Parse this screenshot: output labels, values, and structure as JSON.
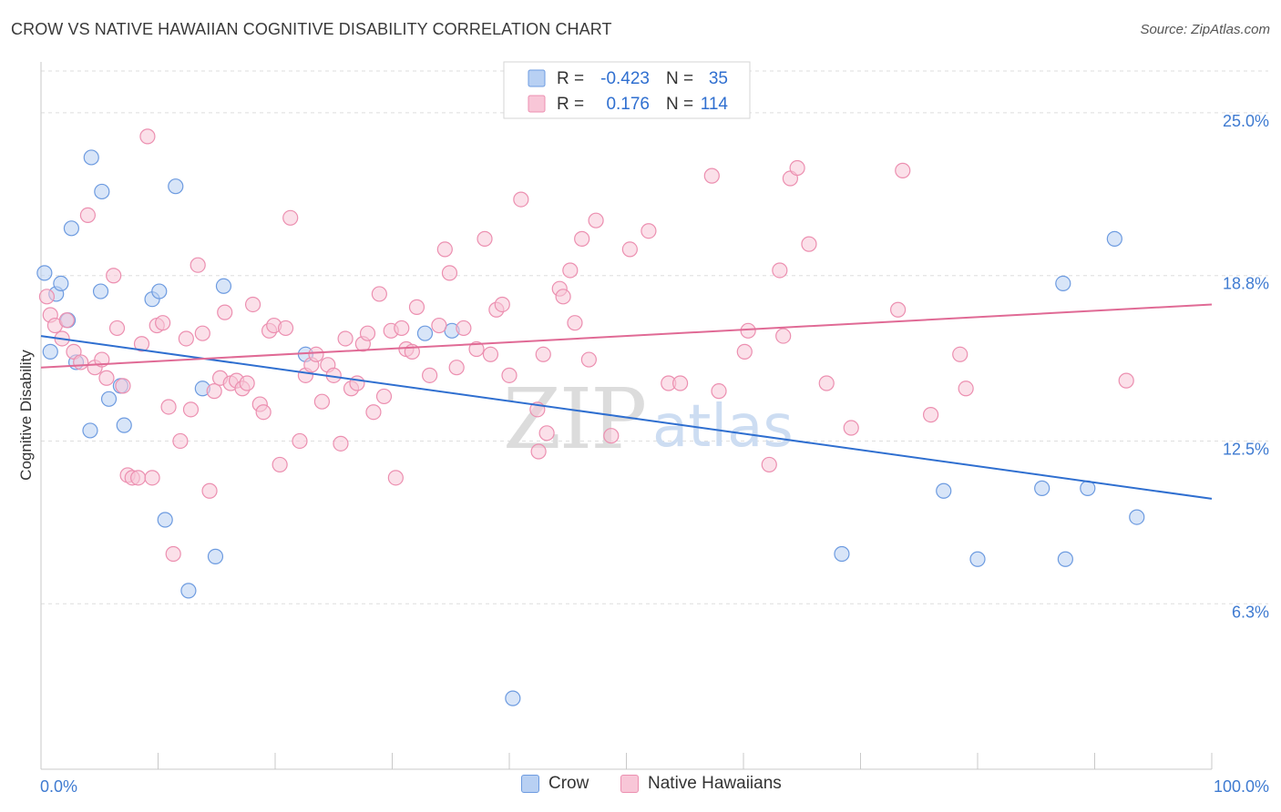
{
  "title": "CROW VS NATIVE HAWAIIAN COGNITIVE DISABILITY CORRELATION CHART",
  "source": "Source: ZipAtlas.com",
  "watermark": {
    "zip": "ZIP",
    "atlas": "atlas"
  },
  "chart_data": {
    "type": "scatter",
    "xlabel": "",
    "ylabel": "Cognitive Disability",
    "xlim": [
      0,
      100
    ],
    "ylim": [
      0,
      26.8
    ],
    "x_tick_labels": [
      "0.0%",
      "100.0%"
    ],
    "y_ticks": [
      {
        "value": 6.3,
        "label": "6.3%"
      },
      {
        "value": 12.5,
        "label": "12.5%"
      },
      {
        "value": 18.8,
        "label": "18.8%"
      },
      {
        "value": 25.0,
        "label": "25.0%"
      }
    ],
    "grid": true,
    "legend": {
      "position": "top-center",
      "rows": [
        {
          "r_label": "R =",
          "r_value": "-0.423",
          "n_label": "N =",
          "n_value": "35"
        },
        {
          "r_label": "R =",
          "r_value": "0.176",
          "n_label": "N =",
          "n_value": "114"
        }
      ]
    },
    "series": [
      {
        "name": "Crow",
        "color": "#6d9be0",
        "fill": "#b8d0f3",
        "line_color": "#2f6fd0",
        "trend": {
          "x": [
            0,
            100
          ],
          "y": [
            16.5,
            10.3
          ]
        },
        "points": [
          [
            0.3,
            18.9
          ],
          [
            1.3,
            18.1
          ],
          [
            1.7,
            18.5
          ],
          [
            2.3,
            17.1
          ],
          [
            0.8,
            15.9
          ],
          [
            3.0,
            15.5
          ],
          [
            2.6,
            20.6
          ],
          [
            4.2,
            12.9
          ],
          [
            4.3,
            23.3
          ],
          [
            5.2,
            22.0
          ],
          [
            5.1,
            18.2
          ],
          [
            5.8,
            14.1
          ],
          [
            6.8,
            14.6
          ],
          [
            7.1,
            13.1
          ],
          [
            9.5,
            17.9
          ],
          [
            10.1,
            18.2
          ],
          [
            10.6,
            9.5
          ],
          [
            11.5,
            22.2
          ],
          [
            12.6,
            6.8
          ],
          [
            13.8,
            14.5
          ],
          [
            14.9,
            8.1
          ],
          [
            15.6,
            18.4
          ],
          [
            22.6,
            15.8
          ],
          [
            32.8,
            16.6
          ],
          [
            35.1,
            16.7
          ],
          [
            40.3,
            2.7
          ],
          [
            68.4,
            8.2
          ],
          [
            77.1,
            10.6
          ],
          [
            80.0,
            8.0
          ],
          [
            85.5,
            10.7
          ],
          [
            87.3,
            18.5
          ],
          [
            87.5,
            8.0
          ],
          [
            89.4,
            10.7
          ],
          [
            91.7,
            20.2
          ],
          [
            93.6,
            9.6
          ]
        ]
      },
      {
        "name": "Native Hawaiians",
        "color": "#ec8fb0",
        "fill": "#f8c6d7",
        "line_color": "#e06a95",
        "trend": {
          "x": [
            0,
            100
          ],
          "y": [
            15.3,
            17.7
          ]
        },
        "points": [
          [
            0.5,
            18.0
          ],
          [
            0.8,
            17.3
          ],
          [
            1.2,
            16.9
          ],
          [
            1.8,
            16.4
          ],
          [
            2.2,
            17.1
          ],
          [
            2.8,
            15.9
          ],
          [
            3.4,
            15.5
          ],
          [
            4.0,
            21.1
          ],
          [
            4.6,
            15.3
          ],
          [
            5.2,
            15.6
          ],
          [
            5.6,
            14.9
          ],
          [
            6.2,
            18.8
          ],
          [
            6.5,
            16.8
          ],
          [
            7.0,
            14.6
          ],
          [
            7.4,
            11.2
          ],
          [
            7.8,
            11.1
          ],
          [
            8.3,
            11.1
          ],
          [
            8.6,
            16.2
          ],
          [
            9.1,
            24.1
          ],
          [
            9.5,
            11.1
          ],
          [
            9.9,
            16.9
          ],
          [
            10.4,
            17.0
          ],
          [
            10.9,
            13.8
          ],
          [
            11.3,
            8.2
          ],
          [
            11.9,
            12.5
          ],
          [
            12.4,
            16.4
          ],
          [
            12.8,
            13.7
          ],
          [
            13.4,
            19.2
          ],
          [
            13.8,
            16.6
          ],
          [
            14.4,
            10.6
          ],
          [
            14.8,
            14.4
          ],
          [
            15.3,
            14.9
          ],
          [
            15.7,
            17.4
          ],
          [
            16.2,
            14.7
          ],
          [
            16.7,
            14.8
          ],
          [
            17.2,
            14.5
          ],
          [
            17.6,
            14.7
          ],
          [
            18.1,
            17.7
          ],
          [
            18.7,
            13.9
          ],
          [
            19.0,
            13.6
          ],
          [
            19.5,
            16.7
          ],
          [
            19.9,
            16.9
          ],
          [
            20.4,
            11.6
          ],
          [
            20.9,
            16.8
          ],
          [
            21.3,
            21.0
          ],
          [
            22.1,
            12.5
          ],
          [
            22.6,
            15.0
          ],
          [
            23.1,
            15.4
          ],
          [
            23.5,
            15.8
          ],
          [
            24.0,
            14.0
          ],
          [
            24.5,
            15.4
          ],
          [
            25.0,
            15.0
          ],
          [
            25.6,
            12.4
          ],
          [
            26.0,
            16.4
          ],
          [
            26.5,
            14.5
          ],
          [
            27.0,
            14.7
          ],
          [
            27.5,
            16.2
          ],
          [
            27.9,
            16.6
          ],
          [
            28.4,
            13.6
          ],
          [
            28.9,
            18.1
          ],
          [
            29.3,
            14.2
          ],
          [
            29.9,
            16.7
          ],
          [
            30.3,
            11.1
          ],
          [
            30.8,
            16.8
          ],
          [
            31.2,
            16.0
          ],
          [
            31.7,
            15.9
          ],
          [
            32.1,
            17.6
          ],
          [
            33.2,
            15.0
          ],
          [
            34.0,
            16.9
          ],
          [
            34.5,
            19.8
          ],
          [
            34.9,
            18.9
          ],
          [
            35.5,
            15.3
          ],
          [
            36.1,
            16.8
          ],
          [
            37.2,
            16.0
          ],
          [
            37.9,
            20.2
          ],
          [
            38.4,
            15.8
          ],
          [
            38.9,
            17.5
          ],
          [
            39.4,
            17.7
          ],
          [
            40.0,
            15.0
          ],
          [
            41.0,
            21.7
          ],
          [
            42.4,
            13.7
          ],
          [
            42.5,
            12.1
          ],
          [
            42.9,
            15.8
          ],
          [
            43.2,
            12.8
          ],
          [
            44.3,
            18.3
          ],
          [
            44.6,
            18.0
          ],
          [
            45.2,
            19.0
          ],
          [
            45.6,
            17.0
          ],
          [
            46.2,
            20.2
          ],
          [
            46.8,
            15.6
          ],
          [
            47.4,
            20.9
          ],
          [
            48.7,
            12.7
          ],
          [
            50.3,
            19.8
          ],
          [
            51.9,
            20.5
          ],
          [
            53.6,
            14.7
          ],
          [
            54.6,
            14.7
          ],
          [
            57.3,
            22.6
          ],
          [
            57.9,
            14.4
          ],
          [
            60.1,
            15.9
          ],
          [
            60.4,
            16.7
          ],
          [
            62.2,
            11.6
          ],
          [
            63.1,
            19.0
          ],
          [
            63.4,
            16.5
          ],
          [
            64.0,
            22.5
          ],
          [
            64.6,
            22.9
          ],
          [
            65.6,
            20.0
          ],
          [
            67.1,
            14.7
          ],
          [
            69.2,
            13.0
          ],
          [
            73.2,
            17.5
          ],
          [
            73.6,
            22.8
          ],
          [
            76.0,
            13.5
          ],
          [
            78.5,
            15.8
          ],
          [
            79.0,
            14.5
          ],
          [
            92.7,
            14.8
          ]
        ]
      }
    ]
  }
}
